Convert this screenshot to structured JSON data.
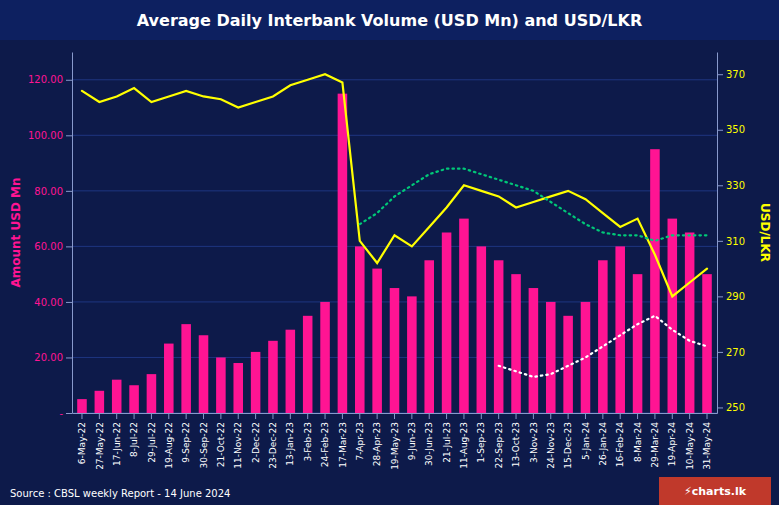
{
  "chart_data": {
    "type": "bar",
    "title": "Average Daily Interbank Volume (USD Mn) and USD/LKR",
    "y_label": "Amount USD Mn",
    "y2_label": "USD/LKR",
    "annotations": [
      "Source : CBSL weekly Report - 14 June 2024",
      "⚡charts.lk"
    ],
    "categories": [
      "6-May-22",
      "27-May-22",
      "17-Jun-22",
      "8-Jul-22",
      "29-Jul-22",
      "19-Aug-22",
      "9-Sep-22",
      "30-Sep-22",
      "21-Oct-22",
      "11-Nov-22",
      "2-Dec-22",
      "23-Dec-22",
      "13-Jan-23",
      "3-Feb-23",
      "24-Feb-23",
      "17-Mar-23",
      "7-Apr-23",
      "28-Apr-23",
      "19-May-23",
      "9-Jun-23",
      "30-Jun-23",
      "21-Jul-23",
      "11-Aug-23",
      "1-Sep-23",
      "22-Sep-23",
      "13-Oct-23",
      "3-Nov-23",
      "24-Nov-23",
      "15-Dec-23",
      "5-Jan-24",
      "26-Jan-24",
      "16-Feb-24",
      "8-Mar-24",
      "29-Mar-24",
      "19-Apr-24",
      "10-May-24",
      "31-May-24"
    ],
    "series": [
      {
        "type": "bar",
        "color": "#FF1493",
        "values": [
          5,
          8,
          12,
          10,
          14,
          25,
          32,
          28,
          20,
          18,
          22,
          26,
          30,
          35,
          40,
          115,
          60,
          52,
          45,
          42,
          55,
          65,
          70,
          60,
          55,
          50,
          45,
          40,
          35,
          40,
          55,
          60,
          50,
          95,
          70,
          65,
          50
        ]
      },
      {
        "type": "line",
        "axis": "y2",
        "color": "#FFFF00",
        "line_style": "solid",
        "values": [
          364,
          360,
          362,
          365,
          360,
          362,
          364,
          362,
          361,
          358,
          360,
          362,
          366,
          368,
          370,
          367,
          310,
          302,
          312,
          308,
          315,
          322,
          330,
          328,
          326,
          322,
          324,
          326,
          328,
          325,
          320,
          315,
          318,
          305,
          290,
          295,
          300
        ]
      },
      {
        "type": "line",
        "axis": "y2",
        "color": "#FFFFFF",
        "line_style": "dotted",
        "values": [
          null,
          null,
          null,
          null,
          null,
          null,
          null,
          null,
          null,
          null,
          null,
          null,
          null,
          null,
          null,
          null,
          null,
          null,
          null,
          null,
          null,
          null,
          null,
          null,
          265,
          263,
          261,
          262,
          265,
          268,
          272,
          276,
          280,
          283,
          278,
          274,
          272
        ]
      },
      {
        "type": "line",
        "axis": "y2",
        "color": "#00C878",
        "line_style": "dotted",
        "values": [
          null,
          null,
          null,
          null,
          null,
          null,
          null,
          null,
          null,
          null,
          null,
          null,
          null,
          null,
          null,
          null,
          316,
          320,
          326,
          330,
          334,
          336,
          336,
          334,
          332,
          330,
          328,
          324,
          320,
          316,
          313,
          312,
          312,
          310,
          312,
          312,
          312
        ]
      }
    ],
    "ylim": [
      0,
      130
    ],
    "yticks": [
      {
        "value": 0,
        "label": "-"
      },
      {
        "value": 20,
        "label": "20.00"
      },
      {
        "value": 40,
        "label": "40.00"
      },
      {
        "value": 60,
        "label": "60.00"
      },
      {
        "value": 80,
        "label": "80.00"
      },
      {
        "value": 100,
        "label": "100.00"
      },
      {
        "value": 120,
        "label": "120.00"
      }
    ],
    "y2lim": [
      248,
      378
    ],
    "y2ticks": [
      250,
      270,
      290,
      310,
      330,
      350,
      370
    ],
    "grid": true
  }
}
